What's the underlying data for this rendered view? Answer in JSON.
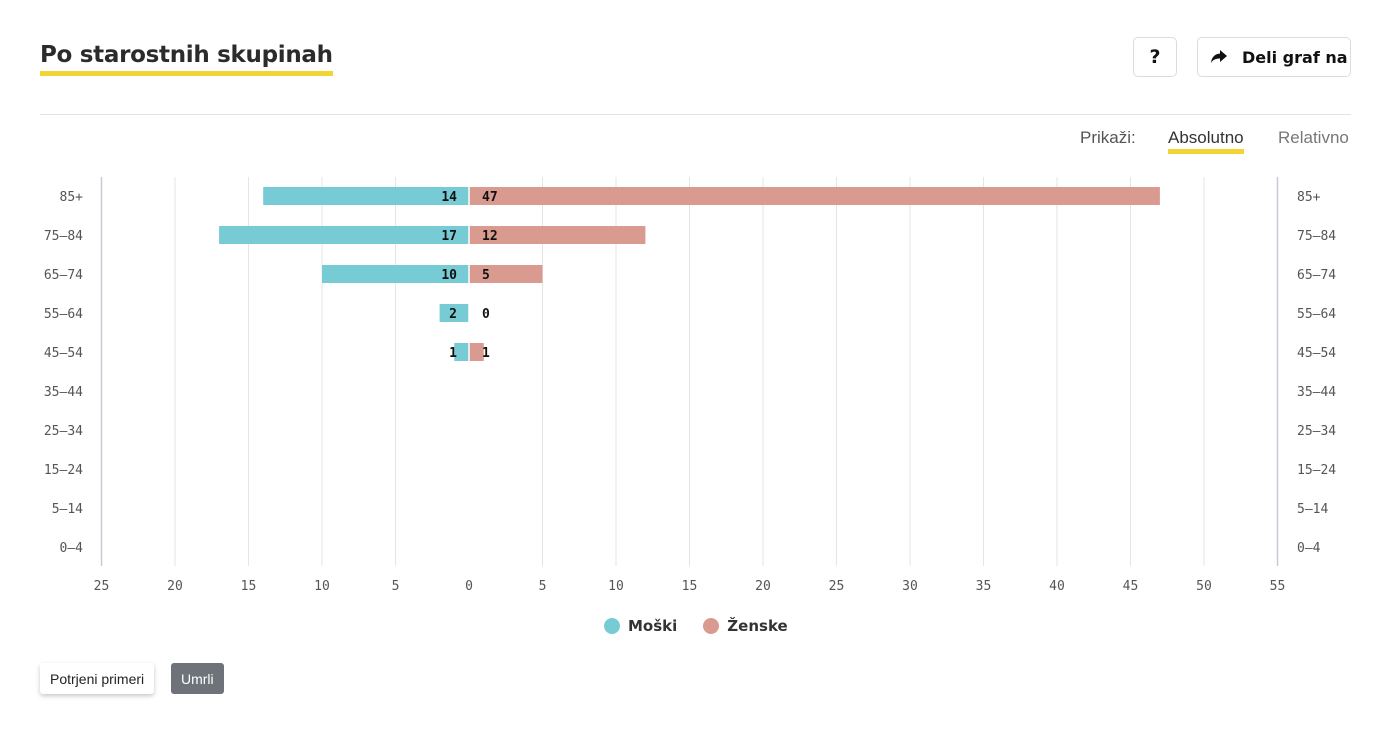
{
  "header": {
    "title": "Po starostnih skupinah",
    "help_label": "?",
    "share_label": "Deli graf na"
  },
  "toggle": {
    "label": "Prikaži:",
    "absolute": "Absolutno",
    "relative": "Relativno",
    "selected": "Absolutno"
  },
  "colors": {
    "male": "#76cbd5",
    "female": "#d99b8f",
    "accent": "#f2d434",
    "grid": "#e5e5e5",
    "active_button": "#6d7379"
  },
  "chart_data": {
    "type": "bar",
    "orientation": "horizontal-diverging",
    "categories": [
      "85+",
      "75–84",
      "65–74",
      "55–64",
      "45–54",
      "35–44",
      "25–34",
      "15–24",
      "5–14",
      "0–4"
    ],
    "series": [
      {
        "name": "Moški",
        "side": "left",
        "values": [
          14,
          17,
          10,
          2,
          1,
          0,
          0,
          0,
          0,
          0
        ],
        "labels": [
          "14",
          "17",
          "10",
          "2",
          "1",
          "",
          "",
          "",
          "",
          ""
        ]
      },
      {
        "name": "Ženske",
        "side": "right",
        "values": [
          47,
          12,
          5,
          0,
          1,
          0,
          0,
          0,
          0,
          0
        ],
        "labels": [
          "47",
          "12",
          "5",
          "0",
          "1",
          "",
          "",
          "",
          "",
          ""
        ]
      }
    ],
    "x_ticks": [
      "25",
      "20",
      "15",
      "10",
      "5",
      "0",
      "5",
      "10",
      "15",
      "20",
      "25",
      "30",
      "35",
      "40",
      "45",
      "50",
      "55"
    ],
    "xlim_left": 25,
    "xlim_right": 55,
    "grid": true,
    "legend_position": "bottom"
  },
  "legend": [
    {
      "label": "Moški",
      "color": "#76cbd5"
    },
    {
      "label": "Ženske",
      "color": "#d99b8f"
    }
  ],
  "buttons": {
    "confirmed": "Potrjeni primeri",
    "deceased": "Umrli",
    "selected": "Umrli"
  }
}
